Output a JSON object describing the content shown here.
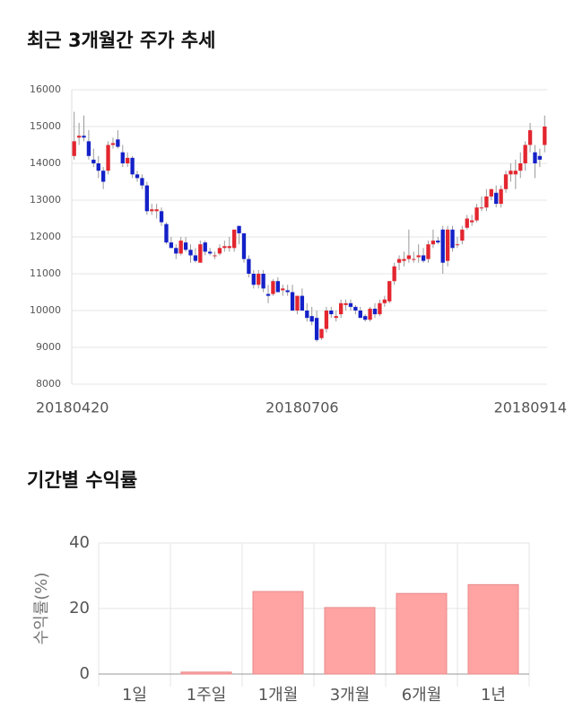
{
  "chart_data": [
    {
      "type": "candlestick",
      "title": "최근 3개월간 주가 추세",
      "categories": [
        "20180420",
        null,
        null,
        null,
        null,
        null,
        null,
        null,
        null,
        null,
        null,
        null,
        null,
        null,
        null,
        null,
        null,
        null,
        null,
        null,
        null,
        null,
        null,
        null,
        null,
        null,
        null,
        null,
        null,
        null,
        null,
        null,
        null,
        null,
        null,
        null,
        null,
        null,
        null,
        null,
        null,
        null,
        null,
        null,
        null,
        null,
        null,
        "20180706",
        null,
        null,
        null,
        null,
        null,
        null,
        null,
        null,
        null,
        null,
        null,
        null,
        null,
        null,
        null,
        null,
        null,
        null,
        null,
        null,
        null,
        null,
        null,
        null,
        null,
        null,
        null,
        null,
        null,
        null,
        null,
        null,
        null,
        null,
        null,
        null,
        null,
        null,
        null,
        null,
        null,
        null,
        null,
        null,
        null,
        null,
        null,
        null,
        null,
        "20180914"
      ],
      "open": [
        14200,
        14700,
        14750,
        14600,
        14100,
        14000,
        13800,
        13800,
        14500,
        14650,
        14300,
        14000,
        14150,
        13700,
        13600,
        13400,
        12700,
        12700,
        12700,
        12350,
        11850,
        11700,
        11550,
        11850,
        11650,
        11500,
        11300,
        11850,
        11600,
        11500,
        11550,
        11700,
        11700,
        11700,
        12300,
        12100,
        11400,
        11000,
        10700,
        11000,
        10450,
        10450,
        10800,
        10550,
        10550,
        10500,
        10000,
        10400,
        10000,
        9850,
        9800,
        9250,
        9500,
        10000,
        9800,
        9900,
        10150,
        10200,
        10100,
        10000,
        9850,
        9750,
        10050,
        9900,
        10200,
        10250,
        10800,
        11300,
        11350,
        11400,
        11400,
        11450,
        11500,
        11400,
        11800,
        11900,
        12200,
        11350,
        12200,
        11800,
        11900,
        12250,
        12400,
        12450,
        12800,
        12800,
        13100,
        13200,
        12900,
        13300,
        13700,
        13700,
        13800,
        14000,
        14500,
        14300,
        14200,
        14500
      ],
      "high": [
        15400,
        15100,
        15300,
        14900,
        14400,
        14200,
        13900,
        14600,
        14700,
        14900,
        14500,
        14300,
        14200,
        13800,
        13700,
        13500,
        12900,
        12900,
        12800,
        12400,
        12000,
        11800,
        12000,
        12000,
        11800,
        11700,
        11900,
        11900,
        11700,
        11600,
        11800,
        11900,
        12000,
        12200,
        12300,
        12100,
        11500,
        11100,
        11100,
        11100,
        10700,
        10850,
        10900,
        10700,
        10700,
        10700,
        10400,
        10600,
        10200,
        10100,
        10000,
        9500,
        10100,
        10100,
        10000,
        10300,
        10300,
        10300,
        10150,
        10100,
        9900,
        10100,
        10200,
        10300,
        10400,
        10800,
        11300,
        11500,
        11600,
        12200,
        11600,
        11800,
        11700,
        11900,
        12200,
        12000,
        12300,
        12300,
        12300,
        12000,
        12300,
        12600,
        12600,
        12900,
        13100,
        13300,
        13300,
        13400,
        13400,
        13800,
        14000,
        14100,
        14300,
        14600,
        15100,
        14500,
        14400,
        15300
      ],
      "low": [
        14100,
        14500,
        14600,
        14100,
        13900,
        13600,
        13300,
        13700,
        14400,
        14400,
        13900,
        13900,
        13600,
        13500,
        13300,
        12600,
        12600,
        12500,
        12300,
        11800,
        11700,
        11400,
        11500,
        11600,
        11300,
        11300,
        11300,
        11500,
        11500,
        11400,
        11500,
        11600,
        11600,
        11600,
        11800,
        11300,
        10900,
        10600,
        10600,
        10500,
        10200,
        10400,
        10500,
        10400,
        10400,
        10000,
        9900,
        10000,
        9700,
        9600,
        9150,
        9200,
        9400,
        9800,
        9700,
        9800,
        10000,
        10000,
        9900,
        9800,
        9700,
        9700,
        9800,
        9850,
        10100,
        10200,
        10700,
        11100,
        11200,
        11300,
        11300,
        11300,
        11300,
        11300,
        11700,
        11800,
        11000,
        11200,
        11600,
        11700,
        11800,
        12200,
        12300,
        12400,
        12700,
        12700,
        13000,
        12800,
        12800,
        13200,
        13500,
        13300,
        13600,
        13800,
        14300,
        13600,
        13900,
        14300
      ],
      "close": [
        14600,
        14750,
        14700,
        14200,
        14000,
        13800,
        13500,
        14500,
        14550,
        14450,
        14000,
        14150,
        13700,
        13600,
        13400,
        12700,
        12750,
        12750,
        12400,
        11850,
        11700,
        11550,
        11900,
        11650,
        11500,
        11350,
        11800,
        11600,
        11550,
        11500,
        11700,
        11750,
        11750,
        12200,
        12100,
        11400,
        11000,
        10700,
        11000,
        10600,
        10400,
        10800,
        10500,
        10600,
        10500,
        10000,
        10400,
        10000,
        9800,
        9700,
        9200,
        9500,
        10000,
        9900,
        9850,
        10200,
        10200,
        10100,
        10000,
        9800,
        9750,
        10050,
        9900,
        10200,
        10300,
        10800,
        11200,
        11400,
        11400,
        11500,
        11400,
        11500,
        11350,
        11800,
        11900,
        11850,
        11300,
        12200,
        11700,
        11800,
        12200,
        12500,
        12450,
        12800,
        12800,
        13100,
        13300,
        12900,
        13300,
        13700,
        13800,
        13800,
        14000,
        14500,
        14900,
        14000,
        14100,
        15000
      ],
      "up_color": "#e3262f",
      "down_color": "#1421c8",
      "ylim": [
        8000,
        16000
      ],
      "yticks": [
        8000,
        9000,
        10000,
        11000,
        12000,
        13000,
        14000,
        15000,
        16000
      ],
      "grid": true
    },
    {
      "type": "bar",
      "title": "기간별 수익률",
      "ylabel": "수익률(%)",
      "categories": [
        "1일",
        "1주일",
        "1개월",
        "3개월",
        "6개월",
        "1년"
      ],
      "values": [
        0,
        0.6,
        25.2,
        20.3,
        24.6,
        27.3
      ],
      "color": "#ffa3a3",
      "ylim": [
        0,
        40
      ],
      "yticks": [
        0,
        20,
        40
      ],
      "grid": true
    }
  ]
}
